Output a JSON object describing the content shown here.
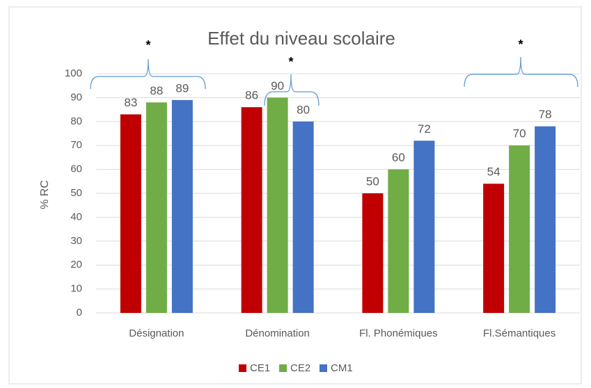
{
  "chart_data": {
    "type": "bar",
    "title": "Effet du niveau scolaire",
    "y_label": "% RC",
    "categories": [
      "Désignation",
      "Dénomination",
      "Fl. Phonémiques",
      "Fl.Sémantiques"
    ],
    "series": [
      {
        "name": "CE1",
        "color": "#c00000",
        "values": [
          83,
          86,
          50,
          54
        ]
      },
      {
        "name": "CE2",
        "color": "#70ad47",
        "values": [
          88,
          90,
          60,
          70
        ]
      },
      {
        "name": "CM1",
        "color": "#4472c4",
        "values": [
          89,
          80,
          72,
          78
        ]
      }
    ],
    "ylim": [
      0,
      100
    ],
    "yticks": [
      0,
      10,
      20,
      30,
      40,
      50,
      60,
      70,
      80,
      90,
      100
    ],
    "grid": true,
    "legend": "bottom",
    "annotations": [
      "*",
      "*",
      "*"
    ]
  }
}
